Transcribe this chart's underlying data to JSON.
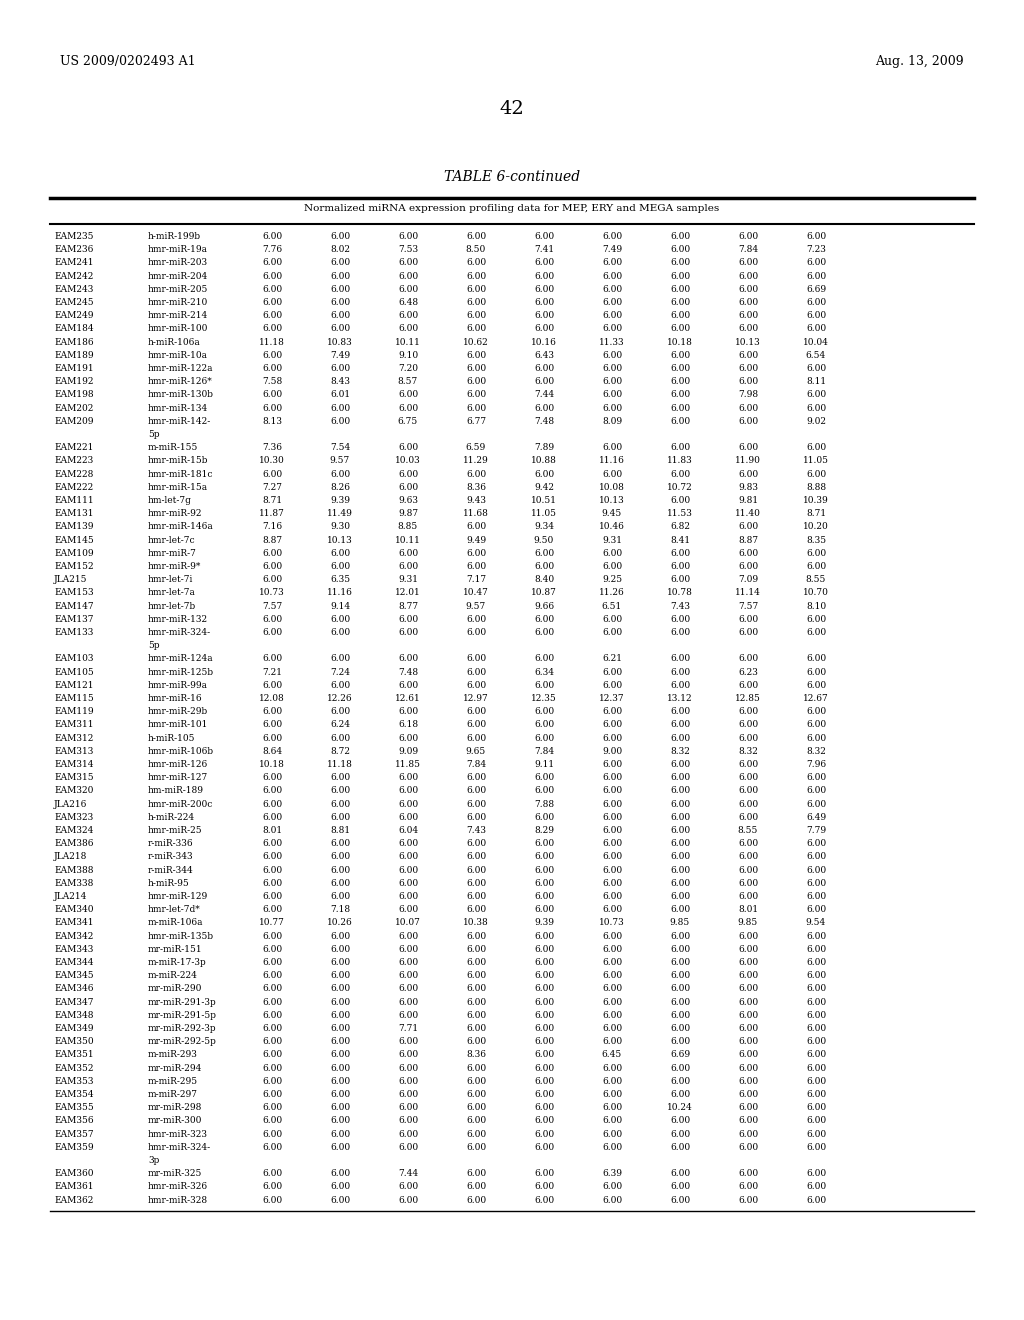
{
  "header_left": "US 2009/0202493 A1",
  "header_right": "Aug. 13, 2009",
  "page_number": "42",
  "table_title": "TABLE 6-continued",
  "table_subtitle": "Normalized miRNA expression profiling data for MEP, ERY and MEGA samples",
  "rows": [
    [
      "EAM235",
      "h-miR-199b",
      "6.00",
      "6.00",
      "6.00",
      "6.00",
      "6.00",
      "6.00",
      "6.00",
      "6.00",
      "6.00"
    ],
    [
      "EAM236",
      "hmr-miR-19a",
      "7.76",
      "8.02",
      "7.53",
      "8.50",
      "7.41",
      "7.49",
      "6.00",
      "7.84",
      "7.23"
    ],
    [
      "EAM241",
      "hmr-miR-203",
      "6.00",
      "6.00",
      "6.00",
      "6.00",
      "6.00",
      "6.00",
      "6.00",
      "6.00",
      "6.00"
    ],
    [
      "EAM242",
      "hmr-miR-204",
      "6.00",
      "6.00",
      "6.00",
      "6.00",
      "6.00",
      "6.00",
      "6.00",
      "6.00",
      "6.00"
    ],
    [
      "EAM243",
      "hmr-miR-205",
      "6.00",
      "6.00",
      "6.00",
      "6.00",
      "6.00",
      "6.00",
      "6.00",
      "6.00",
      "6.69"
    ],
    [
      "EAM245",
      "hmr-miR-210",
      "6.00",
      "6.00",
      "6.48",
      "6.00",
      "6.00",
      "6.00",
      "6.00",
      "6.00",
      "6.00"
    ],
    [
      "EAM249",
      "hmr-miR-214",
      "6.00",
      "6.00",
      "6.00",
      "6.00",
      "6.00",
      "6.00",
      "6.00",
      "6.00",
      "6.00"
    ],
    [
      "EAM184",
      "hmr-miR-100",
      "6.00",
      "6.00",
      "6.00",
      "6.00",
      "6.00",
      "6.00",
      "6.00",
      "6.00",
      "6.00"
    ],
    [
      "EAM186",
      "h-miR-106a",
      "11.18",
      "10.83",
      "10.11",
      "10.62",
      "10.16",
      "11.33",
      "10.18",
      "10.13",
      "10.04"
    ],
    [
      "EAM189",
      "hmr-miR-10a",
      "6.00",
      "7.49",
      "9.10",
      "6.00",
      "6.43",
      "6.00",
      "6.00",
      "6.00",
      "6.54"
    ],
    [
      "EAM191",
      "hmr-miR-122a",
      "6.00",
      "6.00",
      "7.20",
      "6.00",
      "6.00",
      "6.00",
      "6.00",
      "6.00",
      "6.00"
    ],
    [
      "EAM192",
      "hmr-miR-126*",
      "7.58",
      "8.43",
      "8.57",
      "6.00",
      "6.00",
      "6.00",
      "6.00",
      "6.00",
      "8.11"
    ],
    [
      "EAM198",
      "hmr-miR-130b",
      "6.00",
      "6.01",
      "6.00",
      "6.00",
      "7.44",
      "6.00",
      "6.00",
      "7.98",
      "6.00"
    ],
    [
      "EAM202",
      "hmr-miR-134",
      "6.00",
      "6.00",
      "6.00",
      "6.00",
      "6.00",
      "6.00",
      "6.00",
      "6.00",
      "6.00"
    ],
    [
      "EAM209",
      "hmr-miR-142-|5p",
      "8.13",
      "6.00",
      "6.75",
      "6.77",
      "7.48",
      "8.09",
      "6.00",
      "6.00",
      "9.02"
    ],
    [
      "EAM221",
      "m-miR-155",
      "7.36",
      "7.54",
      "6.00",
      "6.59",
      "7.89",
      "6.00",
      "6.00",
      "6.00",
      "6.00"
    ],
    [
      "EAM223",
      "hmr-miR-15b",
      "10.30",
      "9.57",
      "10.03",
      "11.29",
      "10.88",
      "11.16",
      "11.83",
      "11.90",
      "11.05"
    ],
    [
      "EAM228",
      "hmr-miR-181c",
      "6.00",
      "6.00",
      "6.00",
      "6.00",
      "6.00",
      "6.00",
      "6.00",
      "6.00",
      "6.00"
    ],
    [
      "EAM222",
      "hmr-miR-15a",
      "7.27",
      "8.26",
      "6.00",
      "8.36",
      "9.42",
      "10.08",
      "10.72",
      "9.83",
      "8.88"
    ],
    [
      "EAM111",
      "hm-let-7g",
      "8.71",
      "9.39",
      "9.63",
      "9.43",
      "10.51",
      "10.13",
      "6.00",
      "9.81",
      "10.39"
    ],
    [
      "EAM131",
      "hmr-miR-92",
      "11.87",
      "11.49",
      "9.87",
      "11.68",
      "11.05",
      "9.45",
      "11.53",
      "11.40",
      "8.71"
    ],
    [
      "EAM139",
      "hmr-miR-146a",
      "7.16",
      "9.30",
      "8.85",
      "6.00",
      "9.34",
      "10.46",
      "6.82",
      "6.00",
      "10.20"
    ],
    [
      "EAM145",
      "hmr-let-7c",
      "8.87",
      "10.13",
      "10.11",
      "9.49",
      "9.50",
      "9.31",
      "8.41",
      "8.87",
      "8.35"
    ],
    [
      "EAM109",
      "hmr-miR-7",
      "6.00",
      "6.00",
      "6.00",
      "6.00",
      "6.00",
      "6.00",
      "6.00",
      "6.00",
      "6.00"
    ],
    [
      "EAM152",
      "hmr-miR-9*",
      "6.00",
      "6.00",
      "6.00",
      "6.00",
      "6.00",
      "6.00",
      "6.00",
      "6.00",
      "6.00"
    ],
    [
      "JLA215",
      "hmr-let-7i",
      "6.00",
      "6.35",
      "9.31",
      "7.17",
      "8.40",
      "9.25",
      "6.00",
      "7.09",
      "8.55"
    ],
    [
      "EAM153",
      "hmr-let-7a",
      "10.73",
      "11.16",
      "12.01",
      "10.47",
      "10.87",
      "11.26",
      "10.78",
      "11.14",
      "10.70"
    ],
    [
      "EAM147",
      "hmr-let-7b",
      "7.57",
      "9.14",
      "8.77",
      "9.57",
      "9.66",
      "6.51",
      "7.43",
      "7.57",
      "8.10"
    ],
    [
      "EAM137",
      "hmr-miR-132",
      "6.00",
      "6.00",
      "6.00",
      "6.00",
      "6.00",
      "6.00",
      "6.00",
      "6.00",
      "6.00"
    ],
    [
      "EAM133",
      "hmr-miR-324-|5p",
      "6.00",
      "6.00",
      "6.00",
      "6.00",
      "6.00",
      "6.00",
      "6.00",
      "6.00",
      "6.00"
    ],
    [
      "EAM103",
      "hmr-miR-124a",
      "6.00",
      "6.00",
      "6.00",
      "6.00",
      "6.00",
      "6.21",
      "6.00",
      "6.00",
      "6.00"
    ],
    [
      "EAM105",
      "hmr-miR-125b",
      "7.21",
      "7.24",
      "7.48",
      "6.00",
      "6.34",
      "6.00",
      "6.00",
      "6.23",
      "6.00"
    ],
    [
      "EAM121",
      "hmr-miR-99a",
      "6.00",
      "6.00",
      "6.00",
      "6.00",
      "6.00",
      "6.00",
      "6.00",
      "6.00",
      "6.00"
    ],
    [
      "EAM115",
      "hmr-miR-16",
      "12.08",
      "12.26",
      "12.61",
      "12.97",
      "12.35",
      "12.37",
      "13.12",
      "12.85",
      "12.67"
    ],
    [
      "EAM119",
      "hmr-miR-29b",
      "6.00",
      "6.00",
      "6.00",
      "6.00",
      "6.00",
      "6.00",
      "6.00",
      "6.00",
      "6.00"
    ],
    [
      "EAM311",
      "hmr-miR-101",
      "6.00",
      "6.24",
      "6.18",
      "6.00",
      "6.00",
      "6.00",
      "6.00",
      "6.00",
      "6.00"
    ],
    [
      "EAM312",
      "h-miR-105",
      "6.00",
      "6.00",
      "6.00",
      "6.00",
      "6.00",
      "6.00",
      "6.00",
      "6.00",
      "6.00"
    ],
    [
      "EAM313",
      "hmr-miR-106b",
      "8.64",
      "8.72",
      "9.09",
      "9.65",
      "7.84",
      "9.00",
      "8.32",
      "8.32",
      "8.32"
    ],
    [
      "EAM314",
      "hmr-miR-126",
      "10.18",
      "11.18",
      "11.85",
      "7.84",
      "9.11",
      "6.00",
      "6.00",
      "6.00",
      "7.96"
    ],
    [
      "EAM315",
      "hmr-miR-127",
      "6.00",
      "6.00",
      "6.00",
      "6.00",
      "6.00",
      "6.00",
      "6.00",
      "6.00",
      "6.00"
    ],
    [
      "EAM320",
      "hm-miR-189",
      "6.00",
      "6.00",
      "6.00",
      "6.00",
      "6.00",
      "6.00",
      "6.00",
      "6.00",
      "6.00"
    ],
    [
      "JLA216",
      "hmr-miR-200c",
      "6.00",
      "6.00",
      "6.00",
      "6.00",
      "7.88",
      "6.00",
      "6.00",
      "6.00",
      "6.00"
    ],
    [
      "EAM323",
      "h-miR-224",
      "6.00",
      "6.00",
      "6.00",
      "6.00",
      "6.00",
      "6.00",
      "6.00",
      "6.00",
      "6.49"
    ],
    [
      "EAM324",
      "hmr-miR-25",
      "8.01",
      "8.81",
      "6.04",
      "7.43",
      "8.29",
      "6.00",
      "6.00",
      "8.55",
      "7.79"
    ],
    [
      "EAM386",
      "r-miR-336",
      "6.00",
      "6.00",
      "6.00",
      "6.00",
      "6.00",
      "6.00",
      "6.00",
      "6.00",
      "6.00"
    ],
    [
      "JLA218",
      "r-miR-343",
      "6.00",
      "6.00",
      "6.00",
      "6.00",
      "6.00",
      "6.00",
      "6.00",
      "6.00",
      "6.00"
    ],
    [
      "EAM388",
      "r-miR-344",
      "6.00",
      "6.00",
      "6.00",
      "6.00",
      "6.00",
      "6.00",
      "6.00",
      "6.00",
      "6.00"
    ],
    [
      "EAM338",
      "h-miR-95",
      "6.00",
      "6.00",
      "6.00",
      "6.00",
      "6.00",
      "6.00",
      "6.00",
      "6.00",
      "6.00"
    ],
    [
      "JLA214",
      "hmr-miR-129",
      "6.00",
      "6.00",
      "6.00",
      "6.00",
      "6.00",
      "6.00",
      "6.00",
      "6.00",
      "6.00"
    ],
    [
      "EAM340",
      "hmr-let-7d*",
      "6.00",
      "7.18",
      "6.00",
      "6.00",
      "6.00",
      "6.00",
      "6.00",
      "8.01",
      "6.00"
    ],
    [
      "EAM341",
      "m-miR-106a",
      "10.77",
      "10.26",
      "10.07",
      "10.38",
      "9.39",
      "10.73",
      "9.85",
      "9.85",
      "9.54"
    ],
    [
      "EAM342",
      "hmr-miR-135b",
      "6.00",
      "6.00",
      "6.00",
      "6.00",
      "6.00",
      "6.00",
      "6.00",
      "6.00",
      "6.00"
    ],
    [
      "EAM343",
      "mr-miR-151",
      "6.00",
      "6.00",
      "6.00",
      "6.00",
      "6.00",
      "6.00",
      "6.00",
      "6.00",
      "6.00"
    ],
    [
      "EAM344",
      "m-miR-17-3p",
      "6.00",
      "6.00",
      "6.00",
      "6.00",
      "6.00",
      "6.00",
      "6.00",
      "6.00",
      "6.00"
    ],
    [
      "EAM345",
      "m-miR-224",
      "6.00",
      "6.00",
      "6.00",
      "6.00",
      "6.00",
      "6.00",
      "6.00",
      "6.00",
      "6.00"
    ],
    [
      "EAM346",
      "mr-miR-290",
      "6.00",
      "6.00",
      "6.00",
      "6.00",
      "6.00",
      "6.00",
      "6.00",
      "6.00",
      "6.00"
    ],
    [
      "EAM347",
      "mr-miR-291-3p",
      "6.00",
      "6.00",
      "6.00",
      "6.00",
      "6.00",
      "6.00",
      "6.00",
      "6.00",
      "6.00"
    ],
    [
      "EAM348",
      "mr-miR-291-5p",
      "6.00",
      "6.00",
      "6.00",
      "6.00",
      "6.00",
      "6.00",
      "6.00",
      "6.00",
      "6.00"
    ],
    [
      "EAM349",
      "mr-miR-292-3p",
      "6.00",
      "6.00",
      "7.71",
      "6.00",
      "6.00",
      "6.00",
      "6.00",
      "6.00",
      "6.00"
    ],
    [
      "EAM350",
      "mr-miR-292-5p",
      "6.00",
      "6.00",
      "6.00",
      "6.00",
      "6.00",
      "6.00",
      "6.00",
      "6.00",
      "6.00"
    ],
    [
      "EAM351",
      "m-miR-293",
      "6.00",
      "6.00",
      "6.00",
      "8.36",
      "6.00",
      "6.45",
      "6.69",
      "6.00",
      "6.00"
    ],
    [
      "EAM352",
      "mr-miR-294",
      "6.00",
      "6.00",
      "6.00",
      "6.00",
      "6.00",
      "6.00",
      "6.00",
      "6.00",
      "6.00"
    ],
    [
      "EAM353",
      "m-miR-295",
      "6.00",
      "6.00",
      "6.00",
      "6.00",
      "6.00",
      "6.00",
      "6.00",
      "6.00",
      "6.00"
    ],
    [
      "EAM354",
      "m-miR-297",
      "6.00",
      "6.00",
      "6.00",
      "6.00",
      "6.00",
      "6.00",
      "6.00",
      "6.00",
      "6.00"
    ],
    [
      "EAM355",
      "mr-miR-298",
      "6.00",
      "6.00",
      "6.00",
      "6.00",
      "6.00",
      "6.00",
      "10.24",
      "6.00",
      "6.00"
    ],
    [
      "EAM356",
      "mr-miR-300",
      "6.00",
      "6.00",
      "6.00",
      "6.00",
      "6.00",
      "6.00",
      "6.00",
      "6.00",
      "6.00"
    ],
    [
      "EAM357",
      "hmr-miR-323",
      "6.00",
      "6.00",
      "6.00",
      "6.00",
      "6.00",
      "6.00",
      "6.00",
      "6.00",
      "6.00"
    ],
    [
      "EAM359",
      "hmr-miR-324-|3p",
      "6.00",
      "6.00",
      "6.00",
      "6.00",
      "6.00",
      "6.00",
      "6.00",
      "6.00",
      "6.00"
    ],
    [
      "EAM360",
      "mr-miR-325",
      "6.00",
      "6.00",
      "7.44",
      "6.00",
      "6.00",
      "6.39",
      "6.00",
      "6.00",
      "6.00"
    ],
    [
      "EAM361",
      "hmr-miR-326",
      "6.00",
      "6.00",
      "6.00",
      "6.00",
      "6.00",
      "6.00",
      "6.00",
      "6.00",
      "6.00"
    ],
    [
      "EAM362",
      "hmr-miR-328",
      "6.00",
      "6.00",
      "6.00",
      "6.00",
      "6.00",
      "6.00",
      "6.00",
      "6.00",
      "6.00"
    ]
  ],
  "two_line_rows": [
    14,
    29,
    68,
    71
  ],
  "bg_color": "#ffffff",
  "text_color": "#000000",
  "font_size": 6.5,
  "header_font_size": 9,
  "page_num_font_size": 14,
  "title_font_size": 10,
  "subtitle_font_size": 7.5
}
